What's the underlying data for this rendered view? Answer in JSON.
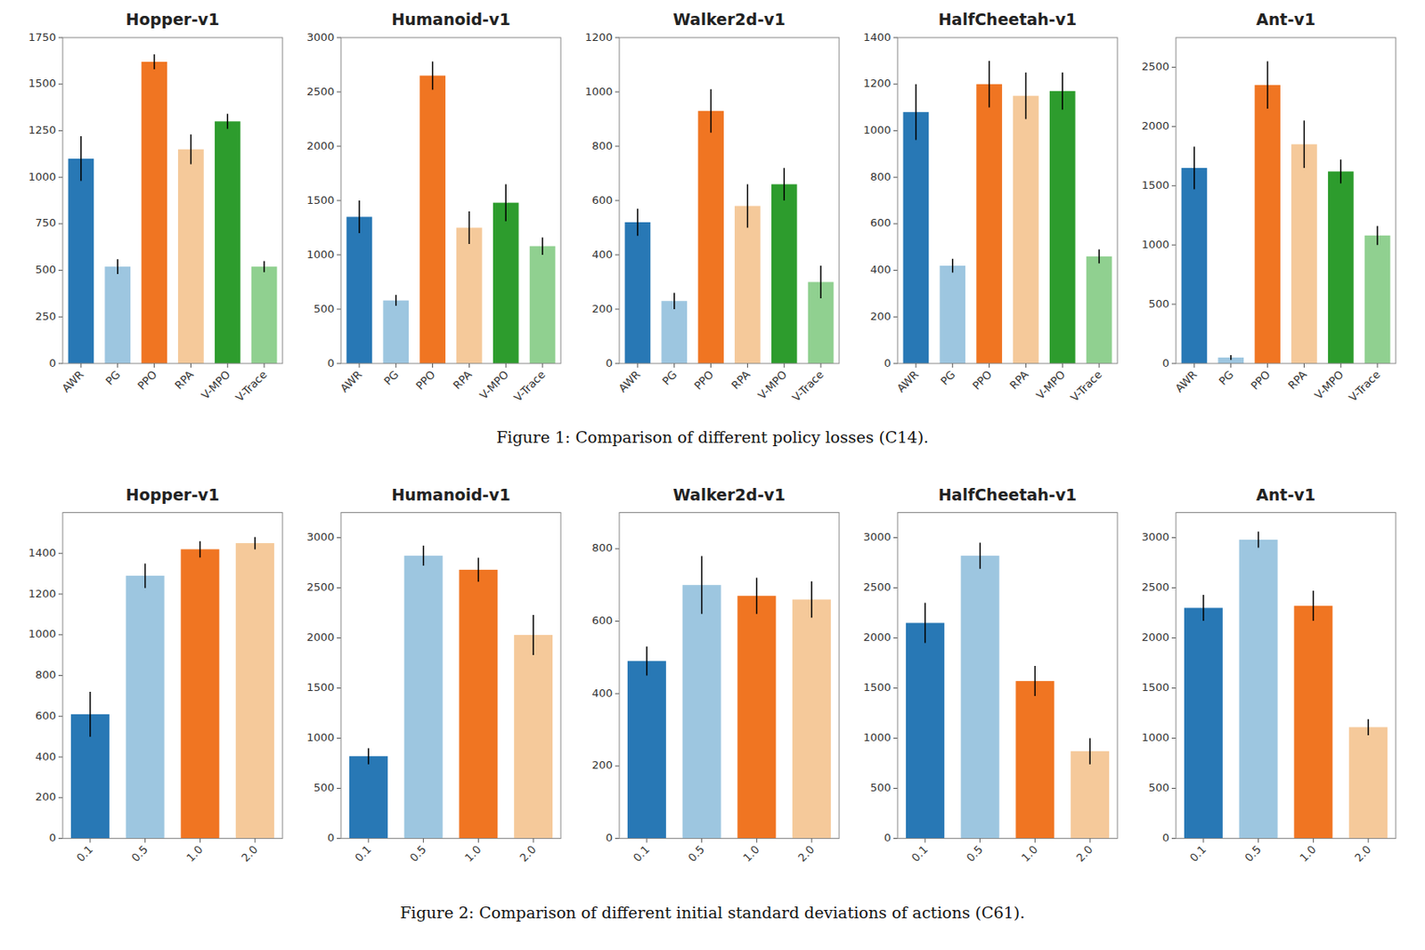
{
  "chart_data": [
    {
      "type": "bar",
      "title": "Hopper-v1",
      "categories": [
        "AWR",
        "PG",
        "PPO",
        "RPA",
        "V-MPO",
        "V-Trace"
      ],
      "values": [
        1100,
        520,
        1620,
        1150,
        1300,
        520
      ],
      "errors": [
        120,
        40,
        40,
        80,
        40,
        30
      ],
      "colors": [
        "#2878b5",
        "#9dc6e0",
        "#f07522",
        "#f5c99a",
        "#2d9c2d",
        "#90d090"
      ],
      "ylim": [
        0,
        1750
      ],
      "yticks": [
        0,
        250,
        500,
        750,
        1000,
        1250,
        1500,
        1750
      ]
    },
    {
      "type": "bar",
      "title": "Humanoid-v1",
      "categories": [
        "AWR",
        "PG",
        "PPO",
        "RPA",
        "V-MPO",
        "V-Trace"
      ],
      "values": [
        1350,
        580,
        2650,
        1250,
        1480,
        1080
      ],
      "errors": [
        150,
        50,
        130,
        150,
        170,
        80
      ],
      "colors": [
        "#2878b5",
        "#9dc6e0",
        "#f07522",
        "#f5c99a",
        "#2d9c2d",
        "#90d090"
      ],
      "ylim": [
        0,
        3000
      ],
      "yticks": [
        0,
        500,
        1000,
        1500,
        2000,
        2500,
        3000
      ]
    },
    {
      "type": "bar",
      "title": "Walker2d-v1",
      "categories": [
        "AWR",
        "PG",
        "PPO",
        "RPA",
        "V-MPO",
        "V-Trace"
      ],
      "values": [
        520,
        230,
        930,
        580,
        660,
        300
      ],
      "errors": [
        50,
        30,
        80,
        80,
        60,
        60
      ],
      "colors": [
        "#2878b5",
        "#9dc6e0",
        "#f07522",
        "#f5c99a",
        "#2d9c2d",
        "#90d090"
      ],
      "ylim": [
        0,
        1200
      ],
      "yticks": [
        0,
        200,
        400,
        600,
        800,
        1000,
        1200
      ]
    },
    {
      "type": "bar",
      "title": "HalfCheetah-v1",
      "categories": [
        "AWR",
        "PG",
        "PPO",
        "RPA",
        "V-MPO",
        "V-Trace"
      ],
      "values": [
        1080,
        420,
        1200,
        1150,
        1170,
        460
      ],
      "errors": [
        120,
        30,
        100,
        100,
        80,
        30
      ],
      "colors": [
        "#2878b5",
        "#9dc6e0",
        "#f07522",
        "#f5c99a",
        "#2d9c2d",
        "#90d090"
      ],
      "ylim": [
        0,
        1400
      ],
      "yticks": [
        0,
        200,
        400,
        600,
        800,
        1000,
        1200,
        1400
      ]
    },
    {
      "type": "bar",
      "title": "Ant-v1",
      "categories": [
        "AWR",
        "PG",
        "PPO",
        "RPA",
        "V-MPO",
        "V-Trace"
      ],
      "values": [
        1650,
        50,
        2350,
        1850,
        1620,
        1080
      ],
      "errors": [
        180,
        20,
        200,
        200,
        100,
        80
      ],
      "colors": [
        "#2878b5",
        "#9dc6e0",
        "#f07522",
        "#f5c99a",
        "#2d9c2d",
        "#90d090"
      ],
      "ylim": [
        0,
        2750
      ],
      "yticks": [
        0,
        500,
        1000,
        1500,
        2000,
        2500
      ]
    },
    {
      "type": "bar",
      "title": "Hopper-v1",
      "categories": [
        "0.1",
        "0.5",
        "1.0",
        "2.0"
      ],
      "values": [
        610,
        1290,
        1420,
        1450
      ],
      "errors": [
        110,
        60,
        40,
        30
      ],
      "colors": [
        "#2878b5",
        "#9dc6e0",
        "#f07522",
        "#f5c99a"
      ],
      "ylim": [
        0,
        1600
      ],
      "yticks": [
        0,
        200,
        400,
        600,
        800,
        1000,
        1200,
        1400
      ]
    },
    {
      "type": "bar",
      "title": "Humanoid-v1",
      "categories": [
        "0.1",
        "0.5",
        "1.0",
        "2.0"
      ],
      "values": [
        820,
        2820,
        2680,
        2030
      ],
      "errors": [
        80,
        100,
        120,
        200
      ],
      "colors": [
        "#2878b5",
        "#9dc6e0",
        "#f07522",
        "#f5c99a"
      ],
      "ylim": [
        0,
        3250
      ],
      "yticks": [
        0,
        500,
        1000,
        1500,
        2000,
        2500,
        3000
      ]
    },
    {
      "type": "bar",
      "title": "Walker2d-v1",
      "categories": [
        "0.1",
        "0.5",
        "1.0",
        "2.0"
      ],
      "values": [
        490,
        700,
        670,
        660
      ],
      "errors": [
        40,
        80,
        50,
        50
      ],
      "colors": [
        "#2878b5",
        "#9dc6e0",
        "#f07522",
        "#f5c99a"
      ],
      "ylim": [
        0,
        900
      ],
      "yticks": [
        0,
        200,
        400,
        600,
        800
      ]
    },
    {
      "type": "bar",
      "title": "HalfCheetah-v1",
      "categories": [
        "0.1",
        "0.5",
        "1.0",
        "2.0"
      ],
      "values": [
        2150,
        2820,
        1570,
        870
      ],
      "errors": [
        200,
        130,
        150,
        130
      ],
      "colors": [
        "#2878b5",
        "#9dc6e0",
        "#f07522",
        "#f5c99a"
      ],
      "ylim": [
        0,
        3250
      ],
      "yticks": [
        0,
        500,
        1000,
        1500,
        2000,
        2500,
        3000
      ]
    },
    {
      "type": "bar",
      "title": "Ant-v1",
      "categories": [
        "0.1",
        "0.5",
        "1.0",
        "2.0"
      ],
      "values": [
        2300,
        2980,
        2320,
        1110
      ],
      "errors": [
        130,
        80,
        150,
        80
      ],
      "colors": [
        "#2878b5",
        "#9dc6e0",
        "#f07522",
        "#f5c99a"
      ],
      "ylim": [
        0,
        3250
      ],
      "yticks": [
        0,
        500,
        1000,
        1500,
        2000,
        2500,
        3000
      ]
    }
  ],
  "captions": [
    "Figure 1: Comparison of different policy losses (C14).",
    "Figure 2: Comparison of different initial standard deviations of actions (C61)."
  ]
}
